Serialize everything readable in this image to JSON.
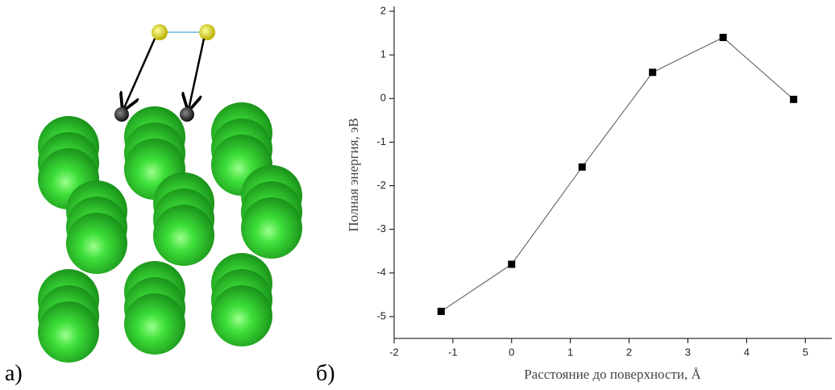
{
  "panel_labels": [
    "а)",
    "б)"
  ],
  "chart_data": {
    "type": "line",
    "x_label": "Расстояние до поверхности, Å",
    "y_label": "Полная энергия, эВ",
    "x": [
      -1.2,
      0,
      1.2,
      2.4,
      3.6,
      4.8
    ],
    "series": [
      {
        "color": "#000000",
        "values": [
          -4.88,
          -3.8,
          -1.57,
          0.6,
          1.4,
          -0.02
        ]
      }
    ],
    "xlim": [
      -2,
      5.45
    ],
    "ylim": [
      -5.5,
      2
    ],
    "xticks": [
      -2,
      -1,
      0,
      1,
      2,
      3,
      4,
      5
    ],
    "yticks": [
      -5,
      -4,
      -3,
      -2,
      -1,
      0,
      1,
      2
    ]
  }
}
